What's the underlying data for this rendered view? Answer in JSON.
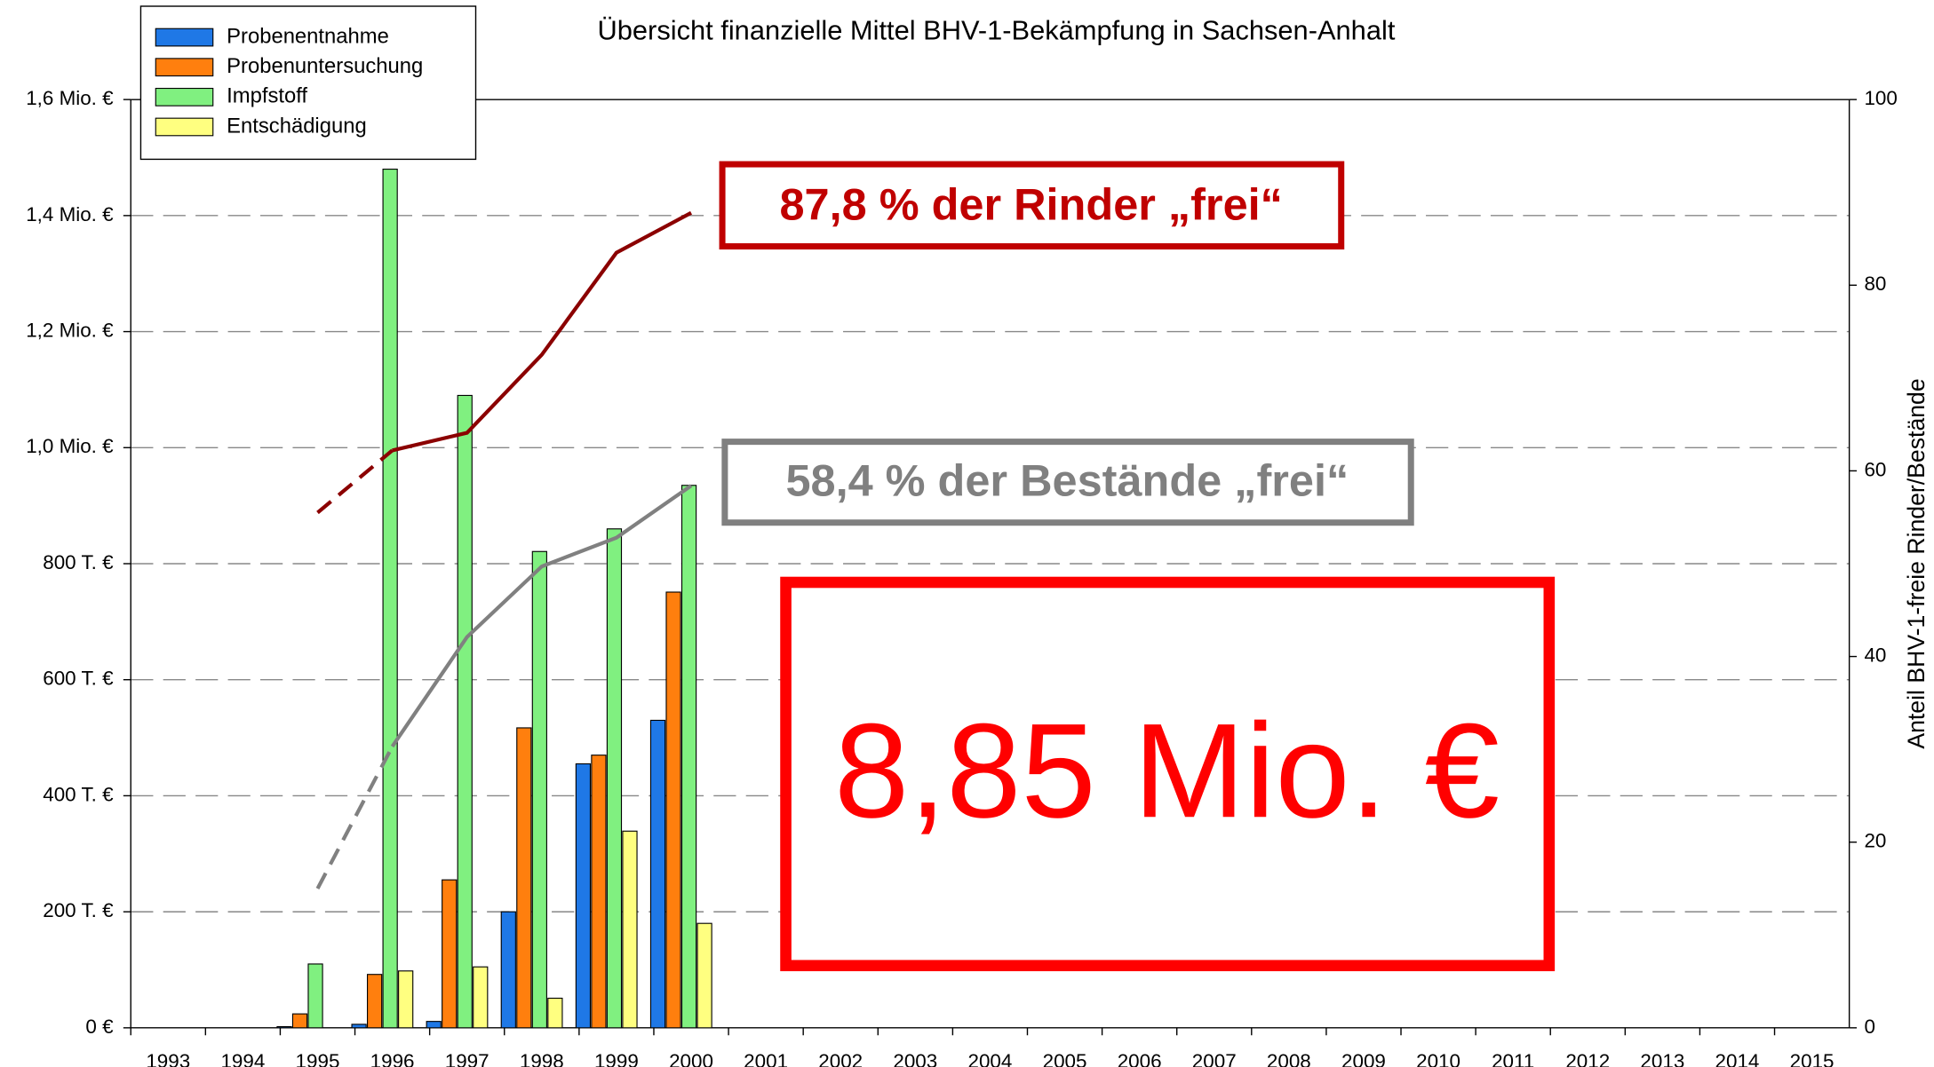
{
  "chart_data": {
    "type": "bar",
    "title": "Übersicht finanzielle Mittel BHV-1-Bekämpfung in Sachsen-Anhalt",
    "y2_label": "Anteil BHV-1-freie Rinder/Bestände",
    "categories": [
      "1993",
      "1994",
      "1995",
      "1996",
      "1997",
      "1998",
      "1999",
      "2000",
      "2001",
      "2002",
      "2003",
      "2004",
      "2005",
      "2006",
      "2007",
      "2008",
      "2009",
      "2010",
      "2011",
      "2012",
      "2013",
      "2014",
      "2015"
    ],
    "ylim": [
      0,
      1600000
    ],
    "yticks": [
      {
        "value": 0,
        "label": "0 €"
      },
      {
        "value": 200000,
        "label": "200 T. €"
      },
      {
        "value": 400000,
        "label": "400 T. €"
      },
      {
        "value": 600000,
        "label": "600 T. €"
      },
      {
        "value": 800000,
        "label": "800 T. €"
      },
      {
        "value": 1000000,
        "label": "1,0 Mio. €"
      },
      {
        "value": 1200000,
        "label": "1,2 Mio. €"
      },
      {
        "value": 1400000,
        "label": "1,4 Mio. €"
      },
      {
        "value": 1600000,
        "label": "1,6 Mio. €"
      }
    ],
    "y2lim": [
      0,
      100
    ],
    "y2ticks": [
      0,
      20,
      40,
      60,
      80,
      100
    ],
    "grid": true,
    "legend": "top-left",
    "series": [
      {
        "name": "Probenentnahme",
        "color": "#1f78e6",
        "values": [
          null,
          null,
          2000,
          6000,
          11000,
          200000,
          455000,
          530000,
          null,
          null,
          null,
          null,
          null,
          null,
          null,
          null,
          null,
          null,
          null,
          null,
          null,
          null,
          null
        ]
      },
      {
        "name": "Probenuntersuchung",
        "color": "#ff7f0e",
        "values": [
          null,
          null,
          24000,
          92000,
          255000,
          517000,
          470000,
          751000,
          null,
          null,
          null,
          null,
          null,
          null,
          null,
          null,
          null,
          null,
          null,
          null,
          null,
          null,
          null
        ]
      },
      {
        "name": "Impfstoff",
        "color": "#80f080",
        "values": [
          null,
          null,
          110000,
          1480000,
          1090000,
          821000,
          860000,
          935000,
          null,
          null,
          null,
          null,
          null,
          null,
          null,
          null,
          null,
          null,
          null,
          null,
          null,
          null,
          null
        ]
      },
      {
        "name": "Entschädigung",
        "color": "#ffff80",
        "values": [
          null,
          null,
          null,
          98000,
          105000,
          51000,
          339000,
          180000,
          null,
          null,
          null,
          null,
          null,
          null,
          null,
          null,
          null,
          null,
          null,
          null,
          null,
          null,
          null
        ]
      }
    ],
    "lines": [
      {
        "color": "#8b0000",
        "axis": "y2",
        "values": [
          null,
          null,
          55.5,
          62.2,
          64.1,
          72.5,
          83.5,
          87.8,
          null,
          null,
          null,
          null,
          null,
          null,
          null,
          null,
          null,
          null,
          null,
          null,
          null,
          null,
          null
        ]
      },
      {
        "color": "#808080",
        "axis": "y2",
        "values": [
          null,
          null,
          15.0,
          30.3,
          42.1,
          49.7,
          52.8,
          58.4,
          null,
          null,
          null,
          null,
          null,
          null,
          null,
          null,
          null,
          null,
          null,
          null,
          null,
          null,
          null
        ]
      }
    ],
    "annotations": [
      "87,8 % der Rinder „frei“",
      "58,4 % der Bestände „frei“",
      "8,85 Mio. €"
    ]
  }
}
